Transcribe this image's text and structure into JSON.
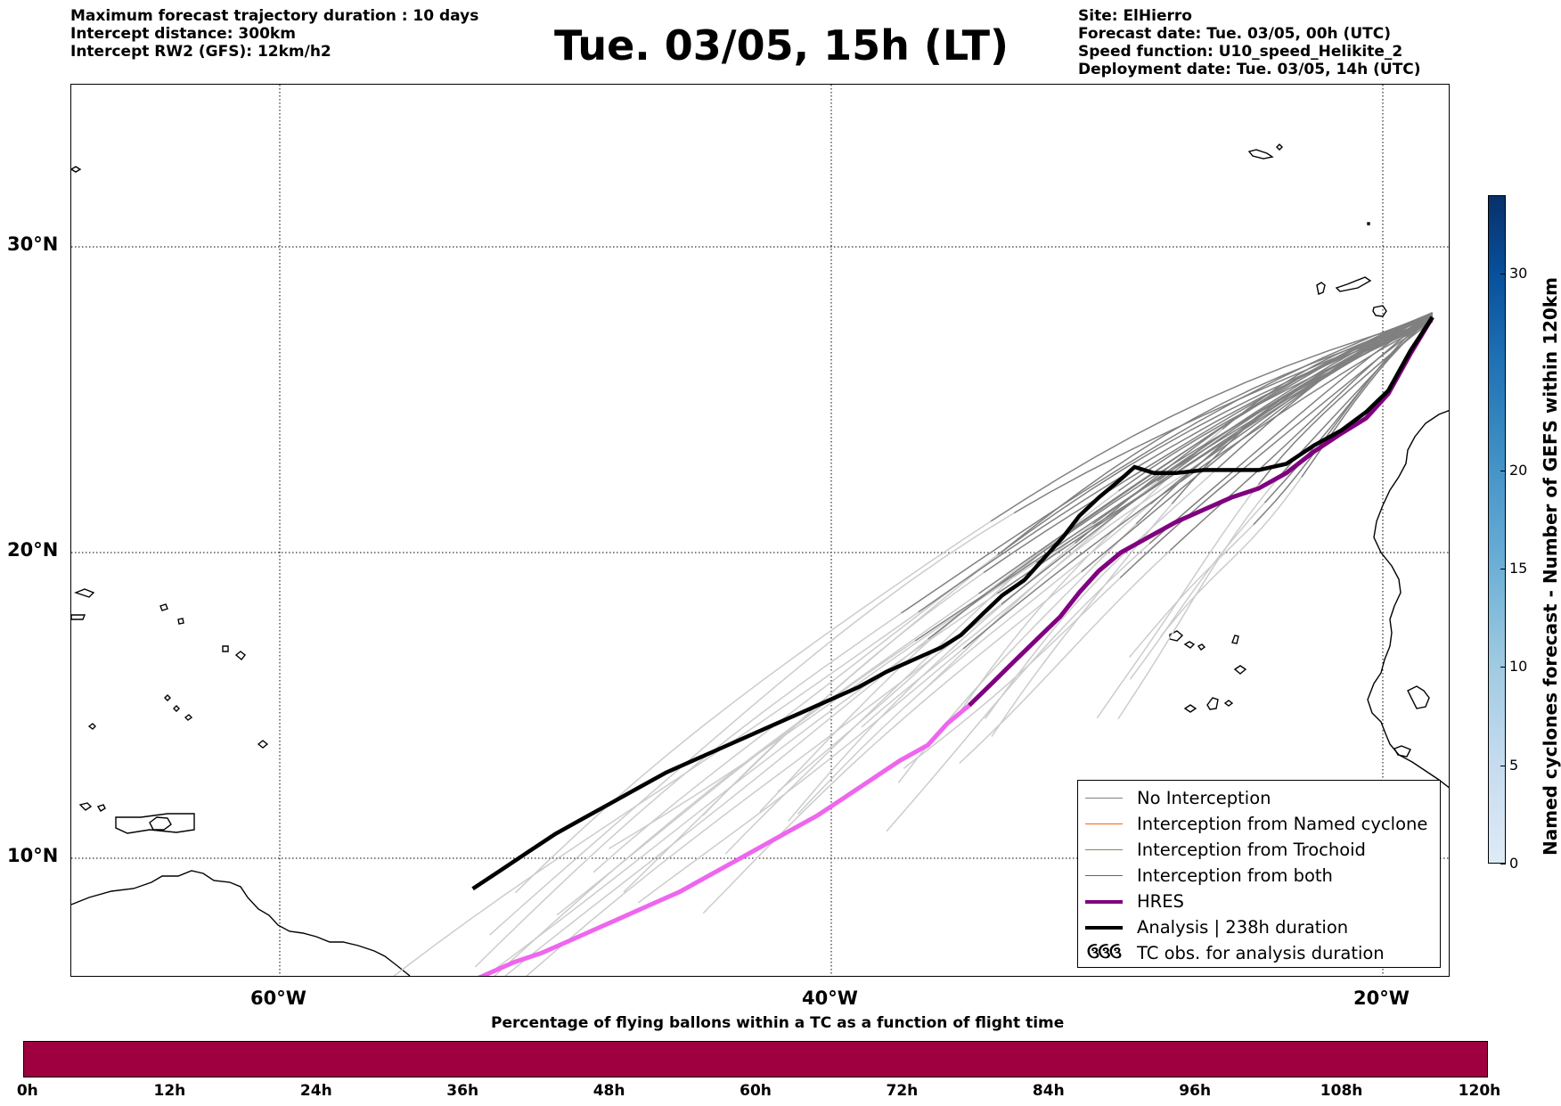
{
  "header": {
    "left_lines": [
      "Maximum forecast trajectory duration : 10 days",
      "Intercept distance: 300km",
      "Intercept RW2 (GFS):  12km/h2"
    ],
    "title": "Tue. 03/05, 15h (LT)",
    "right_lines": [
      "Site: ElHierro",
      "Forecast date: Tue. 03/05, 00h (UTC)",
      "Speed function: U10_speed_Helikite_2",
      "Deployment date: Tue. 03/05, 14h (UTC)"
    ]
  },
  "map": {
    "lon_range": [
      -65,
      15
    ],
    "lat_range": [
      5.5,
      35
    ],
    "lat_labels": [
      {
        "lat": 30,
        "text": "30°N"
      },
      {
        "lat": 20,
        "text": "20°N"
      },
      {
        "lat": 10,
        "text": "10°N"
      }
    ],
    "lon_labels": [
      {
        "lon": -60,
        "text": "60°W"
      },
      {
        "lon": -40,
        "text": "40°W"
      },
      {
        "lon": -20,
        "text": "20°W"
      }
    ],
    "colors": {
      "no_interception": "#808080",
      "light_trajectory": "#cccccc",
      "named_cyclone": "#ff5f1f",
      "trochoid": "#8b8b3a",
      "both": "#2e8b2e",
      "hres": "#800080",
      "hres_light": "#ee66ee",
      "analysis": "#000000",
      "coast": "#000000"
    },
    "analysis_track": [
      [
        -18.2,
        27.7
      ],
      [
        -19.0,
        26.6
      ],
      [
        -19.8,
        25.3
      ],
      [
        -20.6,
        24.6
      ],
      [
        -21.5,
        24.0
      ],
      [
        -22.5,
        23.5
      ],
      [
        -23.5,
        22.9
      ],
      [
        -24.5,
        22.7
      ],
      [
        -25.5,
        22.7
      ],
      [
        -26.5,
        22.7
      ],
      [
        -27.5,
        22.6
      ],
      [
        -28.3,
        22.6
      ],
      [
        -29.0,
        22.8
      ],
      [
        -29.5,
        22.4
      ],
      [
        -30.3,
        21.8
      ],
      [
        -31.0,
        21.2
      ],
      [
        -31.6,
        20.5
      ],
      [
        -32.3,
        19.8
      ],
      [
        -33.0,
        19.1
      ],
      [
        -33.8,
        18.6
      ],
      [
        -34.5,
        18.0
      ],
      [
        -35.3,
        17.3
      ],
      [
        -36.0,
        16.9
      ],
      [
        -37.0,
        16.5
      ],
      [
        -38.0,
        16.1
      ],
      [
        -39.0,
        15.6
      ],
      [
        -40.0,
        15.2
      ],
      [
        -41.0,
        14.8
      ],
      [
        -42.0,
        14.4
      ],
      [
        -43.0,
        14.0
      ],
      [
        -44.0,
        13.6
      ],
      [
        -45.0,
        13.2
      ],
      [
        -46.0,
        12.8
      ],
      [
        -47.0,
        12.3
      ],
      [
        -48.0,
        11.8
      ],
      [
        -49.0,
        11.3
      ],
      [
        -50.0,
        10.8
      ],
      [
        -51.0,
        10.2
      ],
      [
        -52.0,
        9.6
      ],
      [
        -53.0,
        9.0
      ]
    ],
    "hres_track": [
      [
        -18.2,
        27.7
      ],
      [
        -19.0,
        26.5
      ],
      [
        -19.8,
        25.2
      ],
      [
        -20.6,
        24.4
      ],
      [
        -21.5,
        23.9
      ],
      [
        -22.5,
        23.3
      ],
      [
        -23.5,
        22.6
      ],
      [
        -24.5,
        22.1
      ],
      [
        -25.5,
        21.8
      ],
      [
        -26.5,
        21.4
      ],
      [
        -27.5,
        21.0
      ],
      [
        -28.5,
        20.5
      ],
      [
        -29.5,
        20.0
      ],
      [
        -30.3,
        19.4
      ],
      [
        -31.0,
        18.7
      ],
      [
        -31.7,
        17.9
      ],
      [
        -32.5,
        17.2
      ],
      [
        -33.3,
        16.5
      ],
      [
        -34.2,
        15.7
      ],
      [
        -35.0,
        15.0
      ],
      [
        -35.8,
        14.4
      ],
      [
        -36.5,
        13.7
      ],
      [
        -37.5,
        13.2
      ],
      [
        -38.5,
        12.6
      ],
      [
        -39.5,
        12.0
      ],
      [
        -40.5,
        11.4
      ],
      [
        -41.5,
        10.9
      ],
      [
        -42.5,
        10.4
      ],
      [
        -43.5,
        9.9
      ],
      [
        -44.5,
        9.4
      ],
      [
        -45.5,
        8.9
      ],
      [
        -46.5,
        8.5
      ],
      [
        -47.5,
        8.1
      ],
      [
        -48.5,
        7.7
      ],
      [
        -49.5,
        7.3
      ],
      [
        -50.5,
        6.9
      ],
      [
        -51.5,
        6.6
      ],
      [
        -52.5,
        6.2
      ],
      [
        -53.5,
        5.8
      ],
      [
        -54.3,
        5.5
      ]
    ],
    "hres_split_index": 19
  },
  "legend": {
    "items": [
      {
        "label": "No Interception",
        "style": "no_interception"
      },
      {
        "label": "Interception from Named cyclone",
        "style": "named_cyclone"
      },
      {
        "label": "Interception from Trochoid",
        "style": "trochoid"
      },
      {
        "label": "Interception from both",
        "style": "both"
      },
      {
        "label": "HRES",
        "style": "hres"
      },
      {
        "label": "Analysis | 238h duration",
        "style": "analysis"
      },
      {
        "label": "TC obs. for analysis duration",
        "style": "tc"
      }
    ],
    "tc_glyph": "ઉઉઉ"
  },
  "colorbar_vertical": {
    "label": "Named cyclones forecast - Number of GEFS within 120km",
    "range": [
      0,
      34
    ],
    "ticks": [
      0,
      5,
      10,
      15,
      20,
      30
    ]
  },
  "colorbar_horizontal": {
    "title": "Percentage of flying ballons within a TC as a function of flight time",
    "ticks": [
      "0h",
      "12h",
      "24h",
      "36h",
      "48h",
      "60h",
      "72h",
      "84h",
      "96h",
      "108h",
      "120h"
    ],
    "color": "#9e0040"
  }
}
